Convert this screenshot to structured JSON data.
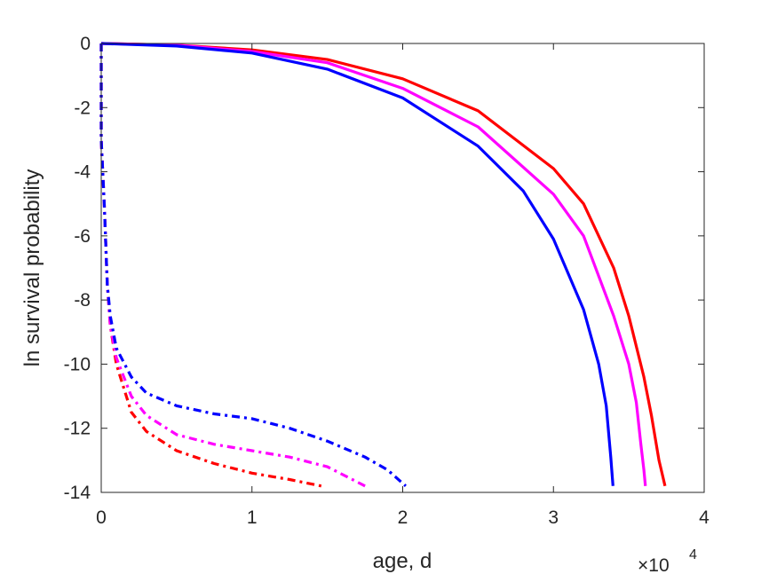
{
  "chart_data": {
    "type": "line",
    "xlabel": "age, d",
    "ylabel": "ln survival probability",
    "x_exponent_label": {
      "base": "×10",
      "exp": "4"
    },
    "xlim": [
      0,
      40000
    ],
    "ylim": [
      -14,
      0
    ],
    "xticks": [
      0,
      10000,
      20000,
      30000,
      40000
    ],
    "xtick_labels": [
      "0",
      "1",
      "2",
      "3",
      "4"
    ],
    "yticks": [
      0,
      -2,
      -4,
      -6,
      -8,
      -10,
      -12,
      -14
    ],
    "ytick_labels": [
      "0",
      "-2",
      "-4",
      "-6",
      "-8",
      "-10",
      "-12",
      "-14"
    ],
    "grid": false,
    "series": [
      {
        "color": "#ff0000",
        "style": "solid",
        "points": [
          [
            0,
            0
          ],
          [
            5000,
            -0.05
          ],
          [
            10000,
            -0.2
          ],
          [
            15000,
            -0.5
          ],
          [
            20000,
            -1.1
          ],
          [
            25000,
            -2.1
          ],
          [
            30000,
            -3.9
          ],
          [
            32000,
            -5.0
          ],
          [
            34000,
            -7.0
          ],
          [
            35000,
            -8.5
          ],
          [
            36000,
            -10.4
          ],
          [
            36500,
            -11.6
          ],
          [
            37000,
            -13.0
          ],
          [
            37200,
            -13.4
          ],
          [
            37400,
            -13.8
          ]
        ]
      },
      {
        "color": "#ff00ff",
        "style": "solid",
        "points": [
          [
            0,
            0
          ],
          [
            5000,
            -0.05
          ],
          [
            10000,
            -0.25
          ],
          [
            15000,
            -0.6
          ],
          [
            20000,
            -1.4
          ],
          [
            25000,
            -2.6
          ],
          [
            30000,
            -4.7
          ],
          [
            32000,
            -6.0
          ],
          [
            34000,
            -8.5
          ],
          [
            35000,
            -10.0
          ],
          [
            35500,
            -11.2
          ],
          [
            35800,
            -12.5
          ],
          [
            36000,
            -13.3
          ],
          [
            36100,
            -13.8
          ]
        ]
      },
      {
        "color": "#0000ff",
        "style": "solid",
        "points": [
          [
            0,
            0
          ],
          [
            5000,
            -0.08
          ],
          [
            10000,
            -0.3
          ],
          [
            15000,
            -0.8
          ],
          [
            20000,
            -1.7
          ],
          [
            25000,
            -3.2
          ],
          [
            28000,
            -4.6
          ],
          [
            30000,
            -6.1
          ],
          [
            32000,
            -8.3
          ],
          [
            33000,
            -10.0
          ],
          [
            33500,
            -11.3
          ],
          [
            33800,
            -12.9
          ],
          [
            33950,
            -13.8
          ]
        ]
      },
      {
        "color": "#ff0000",
        "style": "dashdot",
        "points": [
          [
            0,
            0
          ],
          [
            0,
            -3
          ],
          [
            200,
            -5
          ],
          [
            400,
            -7.5
          ],
          [
            600,
            -8.8
          ],
          [
            1000,
            -10.0
          ],
          [
            2000,
            -11.5
          ],
          [
            3000,
            -12.1
          ],
          [
            5000,
            -12.7
          ],
          [
            7500,
            -13.1
          ],
          [
            10000,
            -13.4
          ],
          [
            12500,
            -13.6
          ],
          [
            14600,
            -13.8
          ]
        ]
      },
      {
        "color": "#ff00ff",
        "style": "dashdot",
        "points": [
          [
            0,
            0
          ],
          [
            0,
            -3
          ],
          [
            200,
            -5
          ],
          [
            400,
            -7.5
          ],
          [
            600,
            -8.8
          ],
          [
            1000,
            -9.8
          ],
          [
            2000,
            -11.0
          ],
          [
            3000,
            -11.6
          ],
          [
            5000,
            -12.2
          ],
          [
            7500,
            -12.5
          ],
          [
            10000,
            -12.7
          ],
          [
            12500,
            -12.9
          ],
          [
            15000,
            -13.2
          ],
          [
            17500,
            -13.8
          ]
        ]
      },
      {
        "color": "#0000ff",
        "style": "dashdot",
        "points": [
          [
            0,
            0
          ],
          [
            0,
            -3
          ],
          [
            200,
            -5
          ],
          [
            400,
            -7.5
          ],
          [
            600,
            -8.5
          ],
          [
            1000,
            -9.5
          ],
          [
            2000,
            -10.4
          ],
          [
            3000,
            -10.9
          ],
          [
            5000,
            -11.3
          ],
          [
            7500,
            -11.55
          ],
          [
            10000,
            -11.7
          ],
          [
            12500,
            -12.0
          ],
          [
            15000,
            -12.4
          ],
          [
            17500,
            -12.9
          ],
          [
            19000,
            -13.3
          ],
          [
            20200,
            -13.8
          ]
        ]
      }
    ]
  }
}
